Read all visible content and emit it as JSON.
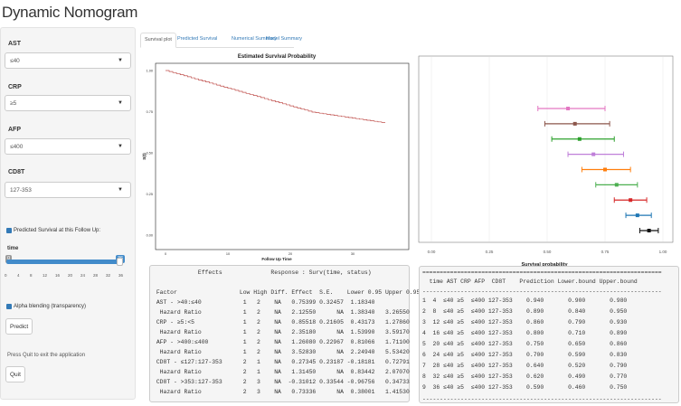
{
  "app_title": "Dynamic Nomogram",
  "sidebar": {
    "inputs": [
      {
        "label": "AST",
        "value": "≤40"
      },
      {
        "label": "CRP",
        "value": "≥5"
      },
      {
        "label": "AFP",
        "value": "≤400"
      },
      {
        "label": "CD8T",
        "value": "127-353"
      }
    ],
    "predicted_checkbox": {
      "label": "Predicted Survival at this Follow Up:",
      "checked": true
    },
    "time": {
      "label": "time",
      "min_badge": "0",
      "value_badge": "36",
      "value": 36,
      "min": 0,
      "max": 36,
      "ticks": [
        "0",
        "4",
        "8",
        "12",
        "16",
        "20",
        "24",
        "28",
        "32",
        "36"
      ]
    },
    "alpha_checkbox": {
      "label": "Alpha blending (transparency)",
      "checked": true
    },
    "predict_button": "Predict",
    "quit_text": "Press Quit to exit the application",
    "quit_button": "Quit"
  },
  "tabs": [
    {
      "label": "Survival plot",
      "active": true
    },
    {
      "label": "Predicted Survival",
      "active": false
    },
    {
      "label": "Numerical Summary",
      "active": false
    },
    {
      "label": "Model Summary",
      "active": false
    }
  ],
  "survival_plot": {
    "title": "Estimated Survival Probability",
    "xlabel": "Follow Up Time",
    "ylabel": "S(t)",
    "x_ticks": [
      "0",
      "10",
      "20",
      "30"
    ],
    "y_ticks": [
      "0.00",
      "0.25",
      "0.50",
      "0.75",
      "1.00"
    ],
    "line_color": "#c0504d"
  },
  "chart_data": {
    "type": "scatter",
    "title": "",
    "xlabel": "Survival probability",
    "ylabel": "",
    "xlim": [
      0,
      1
    ],
    "x_ticks": [
      "0.00",
      "0.25",
      "0.50",
      "0.75",
      "1.00"
    ],
    "grid": true,
    "points": [
      {
        "time": 36,
        "prediction": 0.59,
        "lower": 0.46,
        "upper": 0.75,
        "color": "#e377c2"
      },
      {
        "time": 32,
        "prediction": 0.62,
        "lower": 0.49,
        "upper": 0.77,
        "color": "#8c564b"
      },
      {
        "time": 28,
        "prediction": 0.64,
        "lower": 0.52,
        "upper": 0.79,
        "color": "#2ca02c"
      },
      {
        "time": 24,
        "prediction": 0.7,
        "lower": 0.59,
        "upper": 0.83,
        "color": "#bf7fd9"
      },
      {
        "time": 20,
        "prediction": 0.75,
        "lower": 0.65,
        "upper": 0.86,
        "color": "#ff7f0e"
      },
      {
        "time": 16,
        "prediction": 0.8,
        "lower": 0.71,
        "upper": 0.89,
        "color": "#4caf50"
      },
      {
        "time": 12,
        "prediction": 0.86,
        "lower": 0.79,
        "upper": 0.93,
        "color": "#d62728"
      },
      {
        "time": 8,
        "prediction": 0.89,
        "lower": 0.84,
        "upper": 0.95,
        "color": "#1f77b4"
      },
      {
        "time": 4,
        "prediction": 0.94,
        "lower": 0.9,
        "upper": 0.98,
        "color": "#111111"
      }
    ]
  },
  "effects_output": {
    "header": "             Effects              Response : Surv(time, status)",
    "rows": [
      "",
      " Factor                  Low High Diff. Effect  S.E.    Lower 0.95 Upper 0.95",
      " AST - >40:≤40            1   2    NA   0.75399 0.32457  1.18340",
      "  Hazard Ratio            1   2    NA   2.12550      NA  1.38340   3.26550",
      " CRP - ≥5:<5              1   2    NA   0.85518 0.21605  0.43173   1.27860",
      "  Hazard Ratio            1   2    NA   2.35180      NA  1.53990   3.59170",
      " AFP - >400:≤400          1   2    NA   1.26080 0.22967  0.81066   1.71100",
      "  Hazard Ratio            1   2    NA   3.52830      NA  2.24940   5.53420",
      " CD8T - ≤127:127-353      2   1    NA   0.27345 0.23187 -0.18181   0.72791",
      "  Hazard Ratio            2   1    NA   1.31450      NA  0.83442   2.07070",
      " CD8T - >353:127-353      2   3    NA  -0.31012 0.33544 -0.96756   0.34733",
      "  Hazard Ratio            2   3    NA   0.73336      NA  0.38001   1.41530"
    ]
  },
  "prediction_table": {
    "separator": "=====================================================================",
    "header": "  time AST CRP AFP  CD8T    Prediction Lower.bound Upper.bound",
    "rows": [
      "1  4  ≤40 ≥5  ≤400 127-353    0.940       0.900       0.980",
      "2  8  ≤40 ≥5  ≤400 127-353    0.890       0.840       0.950",
      "3  12 ≤40 ≥5  ≤400 127-353    0.860       0.790       0.930",
      "4  16 ≤40 ≥5  ≤400 127-353    0.800       0.710       0.890",
      "5  20 ≤40 ≥5  ≤400 127-353    0.750       0.650       0.860",
      "6  24 ≤40 ≥5  ≤400 127-353    0.700       0.590       0.830",
      "7  28 ≤40 ≥5  ≤400 127-353    0.640       0.520       0.790",
      "8  32 ≤40 ≥5  ≤400 127-353    0.620       0.490       0.770",
      "9  36 ≤40 ≥5  ≤400 127-353    0.590       0.460       0.750"
    ],
    "dash": "---------------------------------------------------------------------"
  }
}
